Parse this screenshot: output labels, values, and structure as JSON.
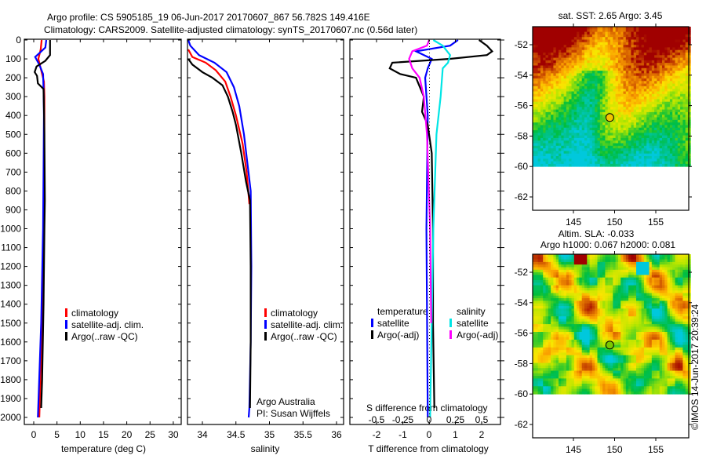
{
  "title_line1": "Argo profile: CS 5905185_19 06-Jun-2017 20170607_867 56.782S 149.416E",
  "title_line2": "Climatology: CARS2009. Satellite-adjusted climatology: synTS_20170607.nc (0.56d later)",
  "colors": {
    "climatology": "#ff0000",
    "satellite": "#0000ff",
    "argo": "#000000",
    "sal_satellite": "#00e5e5",
    "sal_argo": "#ff00ff"
  },
  "chart_data": [
    {
      "type": "line",
      "name": "temperature",
      "xlabel": "temperature (deg C)",
      "xlim": [
        -2,
        31.5
      ],
      "ylim": [
        2070,
        0
      ],
      "xticks": [
        0,
        5,
        10,
        15,
        20,
        25,
        30
      ],
      "yticks": [
        0,
        100,
        200,
        300,
        400,
        500,
        600,
        700,
        800,
        900,
        1000,
        1100,
        1200,
        1300,
        1400,
        1500,
        1600,
        1700,
        1800,
        1900,
        2000
      ],
      "legend": [
        "climatology",
        "satellite-adj. clim.",
        "Argo(..raw -QC)"
      ],
      "series": [
        {
          "name": "climatology",
          "color": "#ff0000",
          "points": [
            [
              1.7,
              0
            ],
            [
              1.5,
              50
            ],
            [
              1.0,
              100
            ],
            [
              1.6,
              160
            ],
            [
              2.2,
              220
            ],
            [
              2.3,
              300
            ],
            [
              2.3,
              450
            ],
            [
              2.2,
              700
            ],
            [
              2.1,
              1000
            ],
            [
              1.8,
              1500
            ],
            [
              1.2,
              2000
            ]
          ]
        },
        {
          "name": "satellite-adj. clim.",
          "color": "#0000ff",
          "points": [
            [
              2.7,
              0
            ],
            [
              2.5,
              40
            ],
            [
              1.2,
              70
            ],
            [
              0.3,
              90
            ],
            [
              1.2,
              130
            ],
            [
              2.0,
              180
            ],
            [
              2.1,
              260
            ],
            [
              2.2,
              400
            ],
            [
              2.1,
              700
            ],
            [
              2.0,
              1000
            ],
            [
              1.6,
              1500
            ],
            [
              0.9,
              2000
            ]
          ]
        },
        {
          "name": "Argo(..raw -QC)",
          "color": "#000000",
          "points": [
            [
              3.5,
              0
            ],
            [
              3.5,
              80
            ],
            [
              2.5,
              110
            ],
            [
              0.6,
              140
            ],
            [
              0.2,
              170
            ],
            [
              0.7,
              190
            ],
            [
              0.9,
              230
            ],
            [
              2.1,
              260
            ],
            [
              2.2,
              350
            ],
            [
              2.3,
              500
            ],
            [
              2.4,
              850
            ],
            [
              2.3,
              1000
            ],
            [
              2.1,
              1400
            ],
            [
              1.8,
              1800
            ],
            [
              1.6,
              1950
            ]
          ]
        }
      ]
    },
    {
      "type": "line",
      "name": "salinity",
      "xlabel": "salinity",
      "xlim": [
        33.78,
        36.12
      ],
      "ylim": [
        2070,
        0
      ],
      "xticks": [
        34,
        34.5,
        35,
        35.5,
        36
      ],
      "legend": [
        "climatology",
        "satellite-adj. clim.",
        "Argo(..raw -QC)"
      ],
      "annotation": [
        "Argo Australia",
        "PI: Susan Wijffels"
      ],
      "series": [
        {
          "name": "climatology",
          "color": "#ff0000",
          "points": [
            [
              33.79,
              50
            ],
            [
              33.85,
              90
            ],
            [
              34.05,
              120
            ],
            [
              34.2,
              160
            ],
            [
              34.34,
              220
            ],
            [
              34.42,
              300
            ],
            [
              34.5,
              400
            ],
            [
              34.6,
              550
            ],
            [
              34.66,
              700
            ],
            [
              34.7,
              870
            ]
          ]
        },
        {
          "name": "satellite-adj. clim.",
          "color": "#0000ff",
          "points": [
            [
              33.79,
              0
            ],
            [
              33.82,
              30
            ],
            [
              33.95,
              80
            ],
            [
              34.18,
              120
            ],
            [
              34.36,
              170
            ],
            [
              34.47,
              250
            ],
            [
              34.55,
              350
            ],
            [
              34.62,
              500
            ],
            [
              34.67,
              650
            ],
            [
              34.72,
              800
            ],
            [
              34.73,
              1200
            ],
            [
              34.72,
              1600
            ],
            [
              34.7,
              1950
            ],
            [
              34.69,
              2000
            ]
          ]
        },
        {
          "name": "Argo(..raw -QC)",
          "color": "#000000",
          "points": [
            [
              33.79,
              100
            ],
            [
              33.85,
              130
            ],
            [
              34.0,
              170
            ],
            [
              34.15,
              200
            ],
            [
              34.3,
              240
            ],
            [
              34.38,
              300
            ],
            [
              34.45,
              380
            ],
            [
              34.5,
              450
            ],
            [
              34.58,
              600
            ],
            [
              34.65,
              750
            ],
            [
              34.71,
              850
            ],
            [
              34.72,
              1200
            ],
            [
              34.72,
              1600
            ],
            [
              34.71,
              1950
            ]
          ]
        }
      ]
    },
    {
      "type": "line",
      "name": "difference",
      "xlabel": "T difference from climatology",
      "x2label": "S difference from climatology",
      "xlim": [
        -2.0,
        2.0
      ],
      "x2lim": [
        -0.5,
        0.5
      ],
      "xticks": [
        -2,
        -1,
        0,
        1,
        2
      ],
      "x2ticks": [
        -0.5,
        -0.25,
        0,
        0.25,
        0.5
      ],
      "x2ticklabels": [
        "-0.5",
        "-0.25",
        "0",
        "0.25",
        "0.5"
      ],
      "legend_temperature": {
        "heading": "temperature",
        "items": [
          "satellite",
          "Argo(-adj)"
        ]
      },
      "legend_salinity": {
        "heading": "salinity",
        "items": [
          "satellite",
          "Argo(-adj)"
        ]
      },
      "series": [
        {
          "name": "T satellite",
          "axis": "T",
          "color": "#0000ff",
          "points": [
            [
              1.1,
              0
            ],
            [
              0.8,
              30
            ],
            [
              -0.5,
              60
            ],
            [
              0.1,
              100
            ],
            [
              -0.05,
              150
            ],
            [
              -0.15,
              200
            ],
            [
              -0.05,
              400
            ],
            [
              -0.1,
              1000
            ],
            [
              -0.05,
              2000
            ]
          ]
        },
        {
          "name": "T Argo(-adj)",
          "axis": "T",
          "color": "#000000",
          "points": [
            [
              1.9,
              0
            ],
            [
              2.2,
              30
            ],
            [
              2.4,
              60
            ],
            [
              2.2,
              80
            ],
            [
              0.8,
              100
            ],
            [
              -1.4,
              120
            ],
            [
              -1.5,
              150
            ],
            [
              -1.1,
              180
            ],
            [
              -0.5,
              200
            ],
            [
              -0.2,
              300
            ],
            [
              -0.27,
              380
            ],
            [
              -0.05,
              450
            ],
            [
              0.1,
              600
            ],
            [
              0.15,
              1000
            ],
            [
              0.15,
              1500
            ],
            [
              0.2,
              1950
            ]
          ]
        },
        {
          "name": "S satellite",
          "axis": "S",
          "color": "#00e5e5",
          "points": [
            [
              0.04,
              0
            ],
            [
              0.13,
              30
            ],
            [
              0.2,
              80
            ],
            [
              0.18,
              120
            ],
            [
              0.13,
              150
            ],
            [
              0.11,
              300
            ],
            [
              0.07,
              500
            ],
            [
              0.04,
              1000
            ],
            [
              0.01,
              2000
            ]
          ]
        },
        {
          "name": "S Argo(-adj)",
          "axis": "S",
          "color": "#ff00ff",
          "points": [
            [
              0.0,
              0
            ],
            [
              -0.02,
              30
            ],
            [
              -0.16,
              60
            ],
            [
              -0.19,
              100
            ],
            [
              -0.16,
              150
            ],
            [
              -0.09,
              200
            ],
            [
              -0.05,
              300
            ],
            [
              -0.02,
              500
            ],
            [
              0.01,
              1000
            ],
            [
              0.02,
              1500
            ]
          ]
        }
      ]
    },
    {
      "type": "heatmap",
      "name": "sst-map",
      "title": "sat. SST: 2.65 Argo: 3.45",
      "xticks": [
        145,
        150,
        155
      ],
      "yticks": [
        -52,
        -54,
        -56,
        -58,
        -60,
        -62
      ],
      "xlim": [
        140.2,
        158.8
      ],
      "ylim": [
        -63.4,
        -50.9
      ],
      "marker": {
        "lon": 149.416,
        "lat": -56.782
      }
    },
    {
      "type": "heatmap",
      "name": "sla-map",
      "title_line1": "Altim. SLA: -0.033",
      "title_line2": "Argo h1000: 0.067 h2000: 0.081",
      "xticks": [
        145,
        150,
        155
      ],
      "yticks": [
        -52,
        -54,
        -56,
        -58,
        -60,
        -62
      ],
      "xlim": [
        140.2,
        158.8
      ],
      "ylim": [
        -63.4,
        -50.9
      ],
      "marker": {
        "lon": 149.416,
        "lat": -56.782
      }
    }
  ],
  "credit": "©IMOS 14-Jun-2017 20:39:24"
}
